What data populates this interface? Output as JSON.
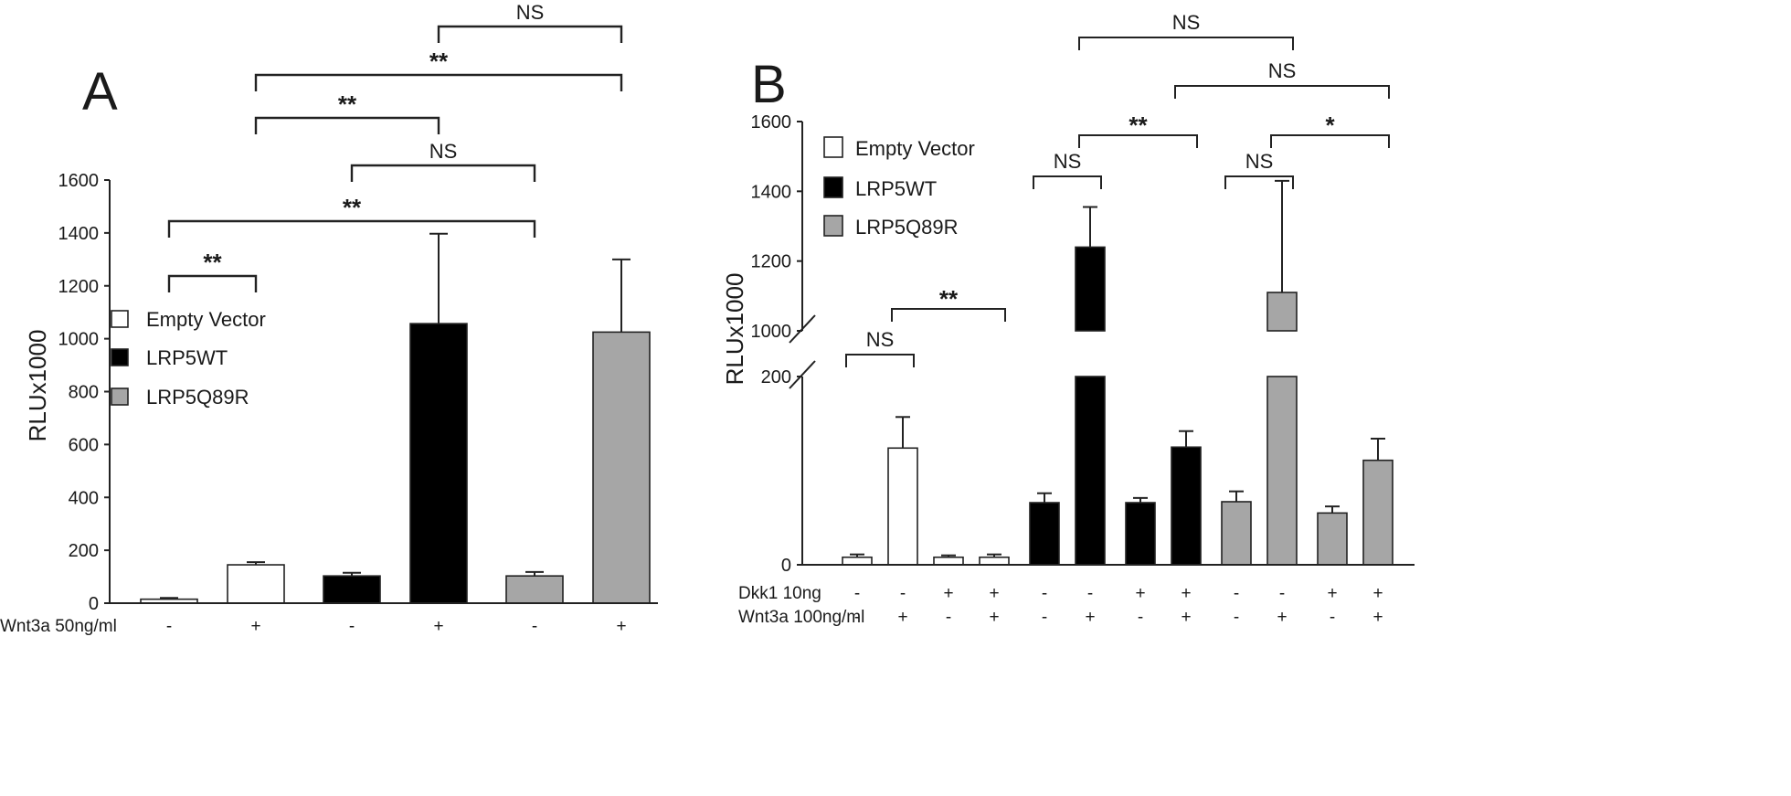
{
  "chart_data": [
    {
      "panel_label": "A",
      "type": "bar",
      "ylabel": "RLUx1000",
      "ylim": [
        0,
        1600
      ],
      "yticks": [
        0,
        200,
        400,
        600,
        800,
        1000,
        1200,
        1400,
        1600
      ],
      "legend": [
        {
          "label": "Empty Vector",
          "color": "#ffffff"
        },
        {
          "label": "LRP5WT",
          "color": "#000000"
        },
        {
          "label": "LRP5Q89R",
          "color": "#a6a6a6"
        }
      ],
      "conditions": [
        {
          "label": "Wnt3a 50ng/ml",
          "values": [
            "-",
            "+",
            "-",
            "+",
            "-",
            "+"
          ]
        }
      ],
      "bars": [
        {
          "group": 0,
          "value": 15,
          "error": 5
        },
        {
          "group": 0,
          "value": 145,
          "error": 10
        },
        {
          "group": 1,
          "value": 103,
          "error": 12
        },
        {
          "group": 1,
          "value": 1057,
          "error": 340
        },
        {
          "group": 2,
          "value": 103,
          "error": 15
        },
        {
          "group": 2,
          "value": 1025,
          "error": 275
        }
      ],
      "comparisons": [
        {
          "from": 0,
          "to": 1,
          "label": "**"
        },
        {
          "from": 0,
          "to": 4,
          "label": "**"
        },
        {
          "from": 2,
          "to": 4,
          "label": "NS"
        },
        {
          "from": 1,
          "to": 3,
          "label": "**"
        },
        {
          "from": 1,
          "to": 5,
          "label": "**"
        },
        {
          "from": 3,
          "to": 5,
          "label": "NS"
        }
      ]
    },
    {
      "panel_label": "B",
      "type": "bar",
      "ylabel": "RLUx1000",
      "axis_break": [
        200,
        1000
      ],
      "yticks": [
        0,
        200,
        1000,
        1200,
        1400,
        1600
      ],
      "legend": [
        {
          "label": "Empty Vector",
          "color": "#ffffff"
        },
        {
          "label": "LRP5WT",
          "color": "#000000"
        },
        {
          "label": "LRP5Q89R",
          "color": "#a6a6a6"
        }
      ],
      "conditions": [
        {
          "label": "Dkk1 10ng",
          "values": [
            "-",
            "-",
            "+",
            "+",
            "-",
            "-",
            "+",
            "+",
            "-",
            "-",
            "+",
            "+"
          ]
        },
        {
          "label": "Wnt3a 100ng/ml",
          "values": [
            "-",
            "+",
            "-",
            "+",
            "-",
            "+",
            "-",
            "+",
            "-",
            "+",
            "-",
            "+"
          ]
        }
      ],
      "bars": [
        {
          "group": 0,
          "value": 8,
          "error": 3
        },
        {
          "group": 0,
          "value": 124,
          "error": 33
        },
        {
          "group": 0,
          "value": 8,
          "error": 2
        },
        {
          "group": 0,
          "value": 8,
          "error": 3
        },
        {
          "group": 1,
          "value": 66,
          "error": 10
        },
        {
          "group": 1,
          "value": 1240,
          "error": 115
        },
        {
          "group": 1,
          "value": 66,
          "error": 5
        },
        {
          "group": 1,
          "value": 125,
          "error": 17
        },
        {
          "group": 2,
          "value": 67,
          "error": 11
        },
        {
          "group": 2,
          "value": 1110,
          "error": 320
        },
        {
          "group": 2,
          "value": 55,
          "error": 7
        },
        {
          "group": 2,
          "value": 111,
          "error": 23
        }
      ],
      "comparisons": [
        {
          "from": 0,
          "to": 1,
          "label": "NS"
        },
        {
          "from": 1,
          "to": 3,
          "label": "**"
        },
        {
          "from": 4,
          "to": 5,
          "label": "NS"
        },
        {
          "from": 5,
          "to": 7,
          "label": "**"
        },
        {
          "from": 8,
          "to": 9,
          "label": "NS"
        },
        {
          "from": 9,
          "to": 11,
          "label": "*"
        },
        {
          "from": 7,
          "to": 11,
          "label": "NS"
        },
        {
          "from": 5,
          "to": 9,
          "label": "NS"
        }
      ]
    }
  ]
}
